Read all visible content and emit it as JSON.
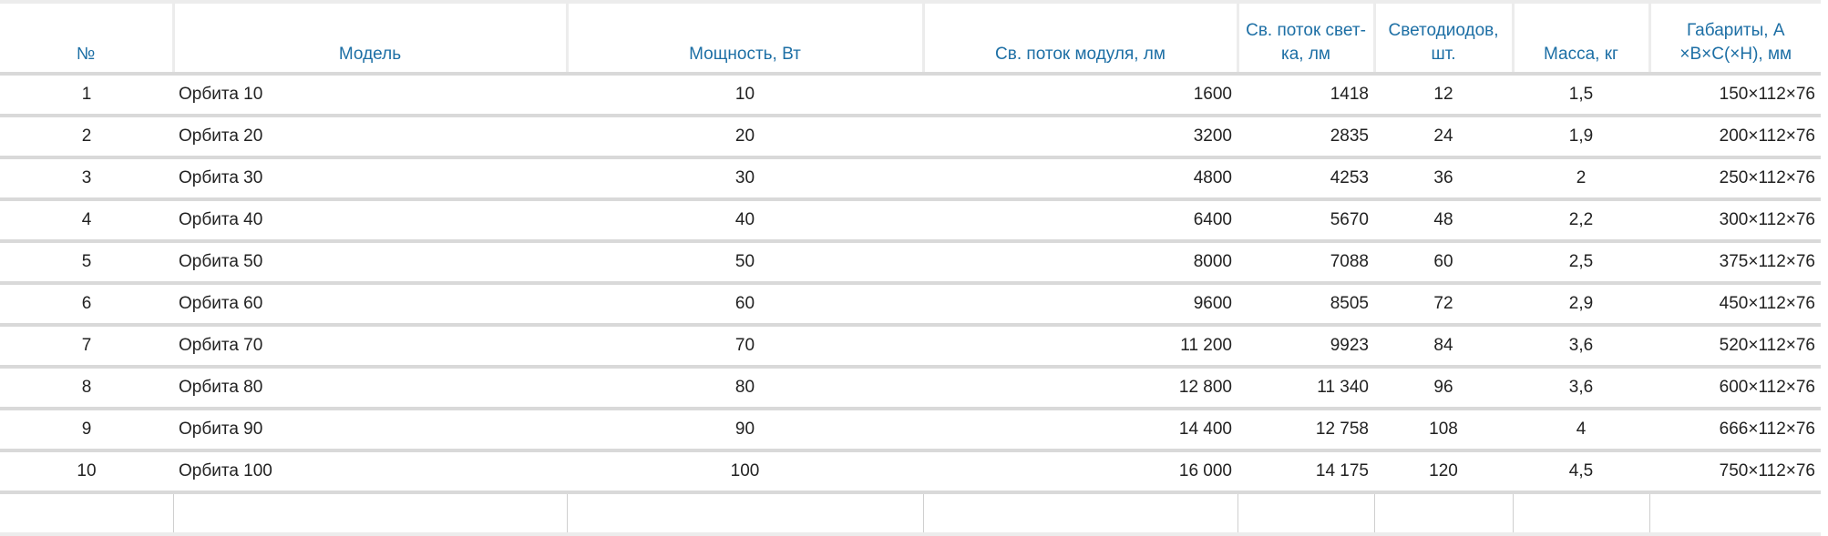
{
  "headers": [
    "№",
    "Модель",
    "Мощность, Вт",
    "Св. поток модуля, лм",
    "Св. поток свет-ка, лм",
    "Светодиодов, шт.",
    "Масса, кг",
    "Габариты, A ×B×C(×H), мм"
  ],
  "rows": [
    [
      "1",
      "Орбита 10",
      "10",
      "1600",
      "1418",
      "12",
      "1,5",
      "150×112×76"
    ],
    [
      "2",
      "Орбита 20",
      "20",
      "3200",
      "2835",
      "24",
      "1,9",
      "200×112×76"
    ],
    [
      "3",
      "Орбита 30",
      "30",
      "4800",
      "4253",
      "36",
      "2",
      "250×112×76"
    ],
    [
      "4",
      "Орбита 40",
      "40",
      "6400",
      "5670",
      "48",
      "2,2",
      "300×112×76"
    ],
    [
      "5",
      "Орбита 50",
      "50",
      "8000",
      "7088",
      "60",
      "2,5",
      "375×112×76"
    ],
    [
      "6",
      "Орбита 60",
      "60",
      "9600",
      "8505",
      "72",
      "2,9",
      "450×112×76"
    ],
    [
      "7",
      "Орбита 70",
      "70",
      "11 200",
      "9923",
      "84",
      "3,6",
      "520×112×76"
    ],
    [
      "8",
      "Орбита 80",
      "80",
      "12 800",
      "11 340",
      "96",
      "3,6",
      "600×112×76"
    ],
    [
      "9",
      "Орбита 90",
      "90",
      "14 400",
      "12 758",
      "108",
      "4",
      "666×112×76"
    ],
    [
      "10",
      "Орбита 100",
      "100",
      "16 000",
      "14 175",
      "120",
      "4,5",
      "750×112×76"
    ]
  ],
  "colors": {
    "header_text": "#1d6fa5",
    "row_border": "#d9d9d9"
  }
}
